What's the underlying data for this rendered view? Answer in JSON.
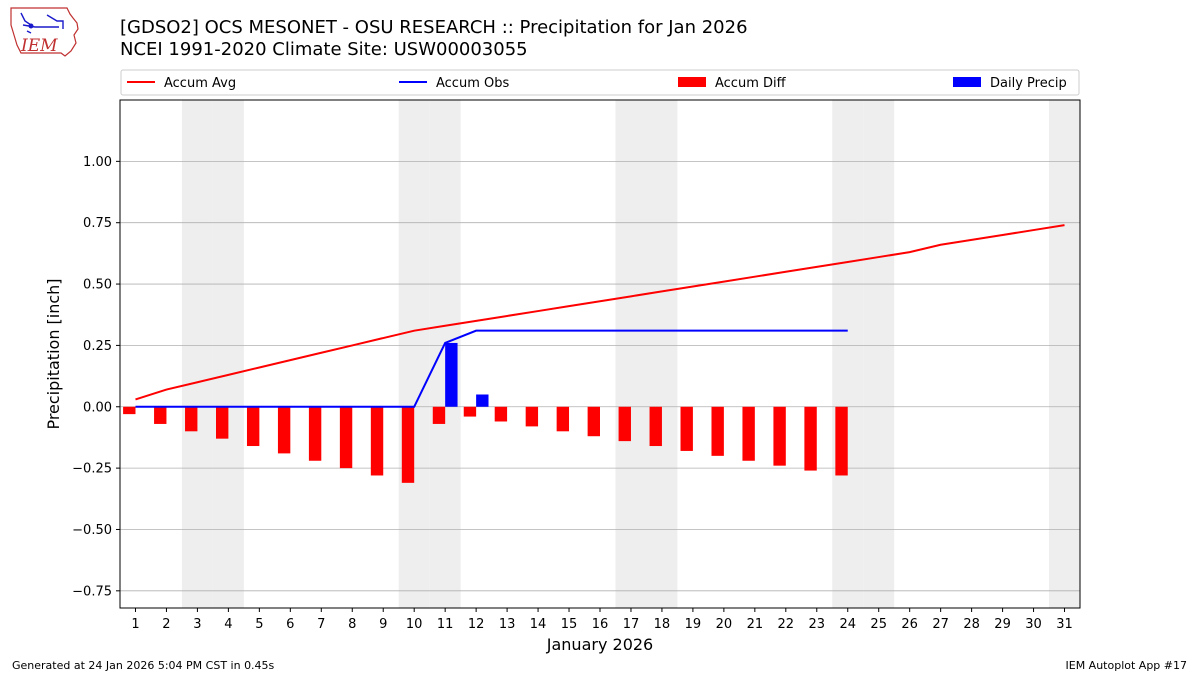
{
  "header": {
    "title_line1": "[GDSO2] OCS MESONET - OSU RESEARCH :: Precipitation for Jan 2026",
    "title_line2": "NCEI 1991-2020 Climate Site: USW00003055",
    "logo_text": "IEM"
  },
  "footer": {
    "generated": "Generated at 24 Jan 2026 5:04 PM CST in 0.45s",
    "app": "IEM Autoplot App #17"
  },
  "colors": {
    "avg": "#ff0000",
    "obs": "#0000ff",
    "diff": "#ff0000",
    "daily": "#0000ff",
    "weekend_shade": "#eeeeee",
    "grid": "#b0b0b0"
  },
  "chart_data": {
    "type": "bar",
    "xlabel": "January 2026",
    "ylabel": "Precipitation [inch]",
    "ylim": [
      -0.82,
      1.25
    ],
    "xlim": [
      0.5,
      31.5
    ],
    "yticks": [
      -0.75,
      -0.5,
      -0.25,
      0.0,
      0.25,
      0.5,
      0.75,
      1.0
    ],
    "ytick_labels": [
      "−0.75",
      "−0.50",
      "−0.25",
      "0.00",
      "0.25",
      "0.50",
      "0.75",
      "1.00"
    ],
    "xticks": [
      1,
      2,
      3,
      4,
      5,
      6,
      7,
      8,
      9,
      10,
      11,
      12,
      13,
      14,
      15,
      16,
      17,
      18,
      19,
      20,
      21,
      22,
      23,
      24,
      25,
      26,
      27,
      28,
      29,
      30,
      31
    ],
    "grid": true,
    "legend_position": "top",
    "shaded_days": [
      3,
      4,
      10,
      11,
      17,
      18,
      24,
      25,
      31
    ],
    "series": [
      {
        "name": "Accum Avg",
        "kind": "line",
        "x": [
          1,
          2,
          3,
          4,
          5,
          6,
          7,
          8,
          9,
          10,
          11,
          12,
          13,
          14,
          15,
          16,
          17,
          18,
          19,
          20,
          21,
          22,
          23,
          24,
          25,
          26,
          27,
          28,
          29,
          30,
          31
        ],
        "values": [
          0.03,
          0.07,
          0.1,
          0.13,
          0.16,
          0.19,
          0.22,
          0.25,
          0.28,
          0.31,
          0.33,
          0.35,
          0.37,
          0.39,
          0.41,
          0.43,
          0.45,
          0.47,
          0.49,
          0.51,
          0.53,
          0.55,
          0.57,
          0.59,
          0.61,
          0.63,
          0.66,
          0.68,
          0.7,
          0.72,
          0.74
        ]
      },
      {
        "name": "Accum Obs",
        "kind": "line",
        "x": [
          1,
          2,
          3,
          4,
          5,
          6,
          7,
          8,
          9,
          10,
          11,
          12,
          13,
          14,
          15,
          16,
          17,
          18,
          19,
          20,
          21,
          22,
          23,
          24
        ],
        "values": [
          0,
          0,
          0,
          0,
          0,
          0,
          0,
          0,
          0,
          0,
          0.26,
          0.31,
          0.31,
          0.31,
          0.31,
          0.31,
          0.31,
          0.31,
          0.31,
          0.31,
          0.31,
          0.31,
          0.31,
          0.31
        ]
      },
      {
        "name": "Accum Diff",
        "kind": "bar",
        "x": [
          1,
          2,
          3,
          4,
          5,
          6,
          7,
          8,
          9,
          10,
          11,
          12,
          13,
          14,
          15,
          16,
          17,
          18,
          19,
          20,
          21,
          22,
          23,
          24
        ],
        "values": [
          -0.03,
          -0.07,
          -0.1,
          -0.13,
          -0.16,
          -0.19,
          -0.22,
          -0.25,
          -0.28,
          -0.31,
          -0.07,
          -0.04,
          -0.06,
          -0.08,
          -0.1,
          -0.12,
          -0.14,
          -0.16,
          -0.18,
          -0.2,
          -0.22,
          -0.24,
          -0.26,
          -0.28
        ]
      },
      {
        "name": "Daily Precip",
        "kind": "bar",
        "x": [
          11,
          12
        ],
        "values": [
          0.26,
          0.05
        ]
      }
    ]
  }
}
